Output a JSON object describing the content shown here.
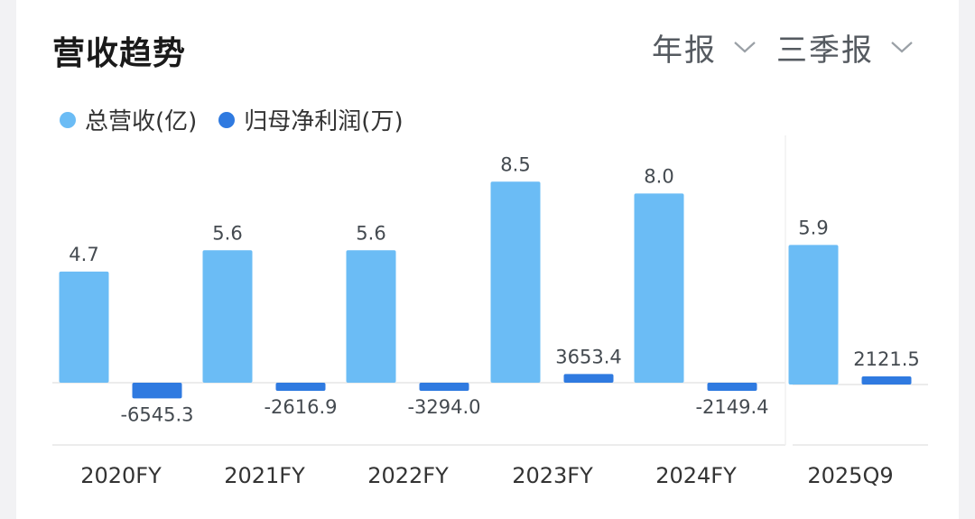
{
  "header": {
    "title": "营收趋势",
    "period_dropdown": "年报",
    "quarter_dropdown": "三季报"
  },
  "legend": [
    {
      "label": "总营收(亿)",
      "color": "#6bbcf5"
    },
    {
      "label": "归母净利润(万)",
      "color": "#2f7ae0"
    }
  ],
  "chart_data": {
    "type": "bar",
    "categories": [
      "2020FY",
      "2021FY",
      "2022FY",
      "2023FY",
      "2024FY",
      "2025Q9"
    ],
    "series": [
      {
        "name": "总营收(亿)",
        "values": [
          4.7,
          5.6,
          5.6,
          8.5,
          8.0,
          5.9
        ],
        "labels": [
          "4.7",
          "5.6",
          "5.6",
          "8.5",
          "8.0",
          "5.9"
        ],
        "color": "#6bbcf5"
      },
      {
        "name": "归母净利润(万)",
        "values": [
          -6545.3,
          -2616.9,
          -3294.0,
          3653.4,
          -2149.4,
          2121.5
        ],
        "labels": [
          "-6545.3",
          "-2616.9",
          "-3294.0",
          "3653.4",
          "-2149.4",
          "2121.5"
        ],
        "color": "#2f7ae0"
      }
    ],
    "annual_ylim": [
      0,
      8.5
    ],
    "profit_ylim": [
      -6545.3,
      3653.4
    ],
    "legend_position": "top-left",
    "grid": false
  }
}
